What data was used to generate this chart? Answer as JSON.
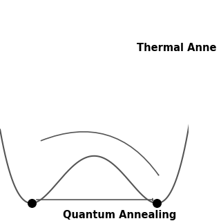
{
  "background_color": "#ffffff",
  "curve_color": "#555555",
  "arrow_color": "#555555",
  "dot_color": "#000000",
  "thermal_label": "Thermal Anne",
  "quantum_label": "Quantum Annealing",
  "thermal_fontsize": 10.5,
  "quantum_fontsize": 10.5,
  "figsize": [
    3.2,
    3.2
  ],
  "dpi": 100,
  "xlim": [
    -0.15,
    1.05
  ],
  "ylim": [
    -0.05,
    1.15
  ]
}
